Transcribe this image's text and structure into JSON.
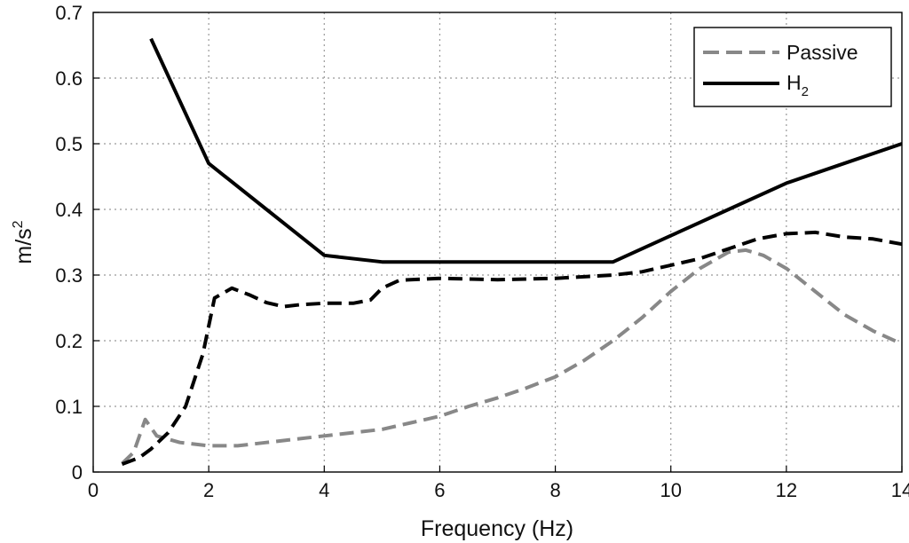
{
  "chart_data": {
    "type": "line",
    "xlabel": "Frequency (Hz)",
    "ylabel": "m/s",
    "ylabel_superscript": "2",
    "xlim": [
      0,
      14
    ],
    "ylim": [
      0,
      0.7
    ],
    "xticks": [
      0,
      2,
      4,
      6,
      8,
      10,
      12,
      14
    ],
    "yticks": [
      0,
      0.1,
      0.2,
      0.3,
      0.4,
      0.5,
      0.6,
      0.7
    ],
    "grid": true,
    "legend_position": "top-right",
    "legend": [
      {
        "label": "Passive",
        "sub": "",
        "style": "dashed",
        "color": "#888888"
      },
      {
        "label": "H",
        "sub": "2",
        "style": "solid",
        "color": "#000000"
      }
    ],
    "series": [
      {
        "name": "Passive",
        "style": "dashed",
        "color": "#888888",
        "points": [
          [
            0.5,
            0.013
          ],
          [
            0.7,
            0.03
          ],
          [
            0.9,
            0.08
          ],
          [
            1.1,
            0.055
          ],
          [
            1.5,
            0.045
          ],
          [
            2,
            0.04
          ],
          [
            2.5,
            0.04
          ],
          [
            3,
            0.045
          ],
          [
            3.5,
            0.05
          ],
          [
            4,
            0.055
          ],
          [
            4.5,
            0.06
          ],
          [
            5,
            0.065
          ],
          [
            5.5,
            0.075
          ],
          [
            6,
            0.085
          ],
          [
            6.5,
            0.1
          ],
          [
            7,
            0.113
          ],
          [
            7.5,
            0.128
          ],
          [
            8,
            0.145
          ],
          [
            8.5,
            0.17
          ],
          [
            9,
            0.2
          ],
          [
            9.5,
            0.235
          ],
          [
            10,
            0.275
          ],
          [
            10.5,
            0.31
          ],
          [
            11,
            0.335
          ],
          [
            11.3,
            0.338
          ],
          [
            11.6,
            0.33
          ],
          [
            12,
            0.31
          ],
          [
            12.5,
            0.275
          ],
          [
            13,
            0.24
          ],
          [
            13.5,
            0.215
          ],
          [
            14,
            0.195
          ]
        ]
      },
      {
        "name": "H2",
        "style": "solid",
        "color": "#000000",
        "points": [
          [
            1,
            0.66
          ],
          [
            2,
            0.47
          ],
          [
            3,
            0.4
          ],
          [
            4,
            0.33
          ],
          [
            5,
            0.32
          ],
          [
            6,
            0.32
          ],
          [
            7,
            0.32
          ],
          [
            8,
            0.32
          ],
          [
            9,
            0.32
          ],
          [
            10,
            0.36
          ],
          [
            11,
            0.4
          ],
          [
            12,
            0.44
          ],
          [
            13,
            0.47
          ],
          [
            14,
            0.5
          ]
        ]
      },
      {
        "name": "",
        "style": "dashed",
        "color": "#000000",
        "points": [
          [
            0.5,
            0.012
          ],
          [
            0.8,
            0.022
          ],
          [
            1,
            0.035
          ],
          [
            1.3,
            0.06
          ],
          [
            1.6,
            0.1
          ],
          [
            1.9,
            0.18
          ],
          [
            2.1,
            0.265
          ],
          [
            2.4,
            0.28
          ],
          [
            2.7,
            0.27
          ],
          [
            3,
            0.258
          ],
          [
            3.3,
            0.252
          ],
          [
            3.6,
            0.255
          ],
          [
            4,
            0.257
          ],
          [
            4.5,
            0.257
          ],
          [
            4.8,
            0.262
          ],
          [
            5,
            0.28
          ],
          [
            5.3,
            0.292
          ],
          [
            6,
            0.295
          ],
          [
            7,
            0.293
          ],
          [
            8,
            0.295
          ],
          [
            9,
            0.3
          ],
          [
            9.5,
            0.305
          ],
          [
            10,
            0.315
          ],
          [
            10.5,
            0.325
          ],
          [
            11,
            0.34
          ],
          [
            11.5,
            0.355
          ],
          [
            12,
            0.363
          ],
          [
            12.5,
            0.365
          ],
          [
            13,
            0.358
          ],
          [
            13.5,
            0.355
          ],
          [
            14,
            0.347
          ]
        ]
      }
    ]
  }
}
